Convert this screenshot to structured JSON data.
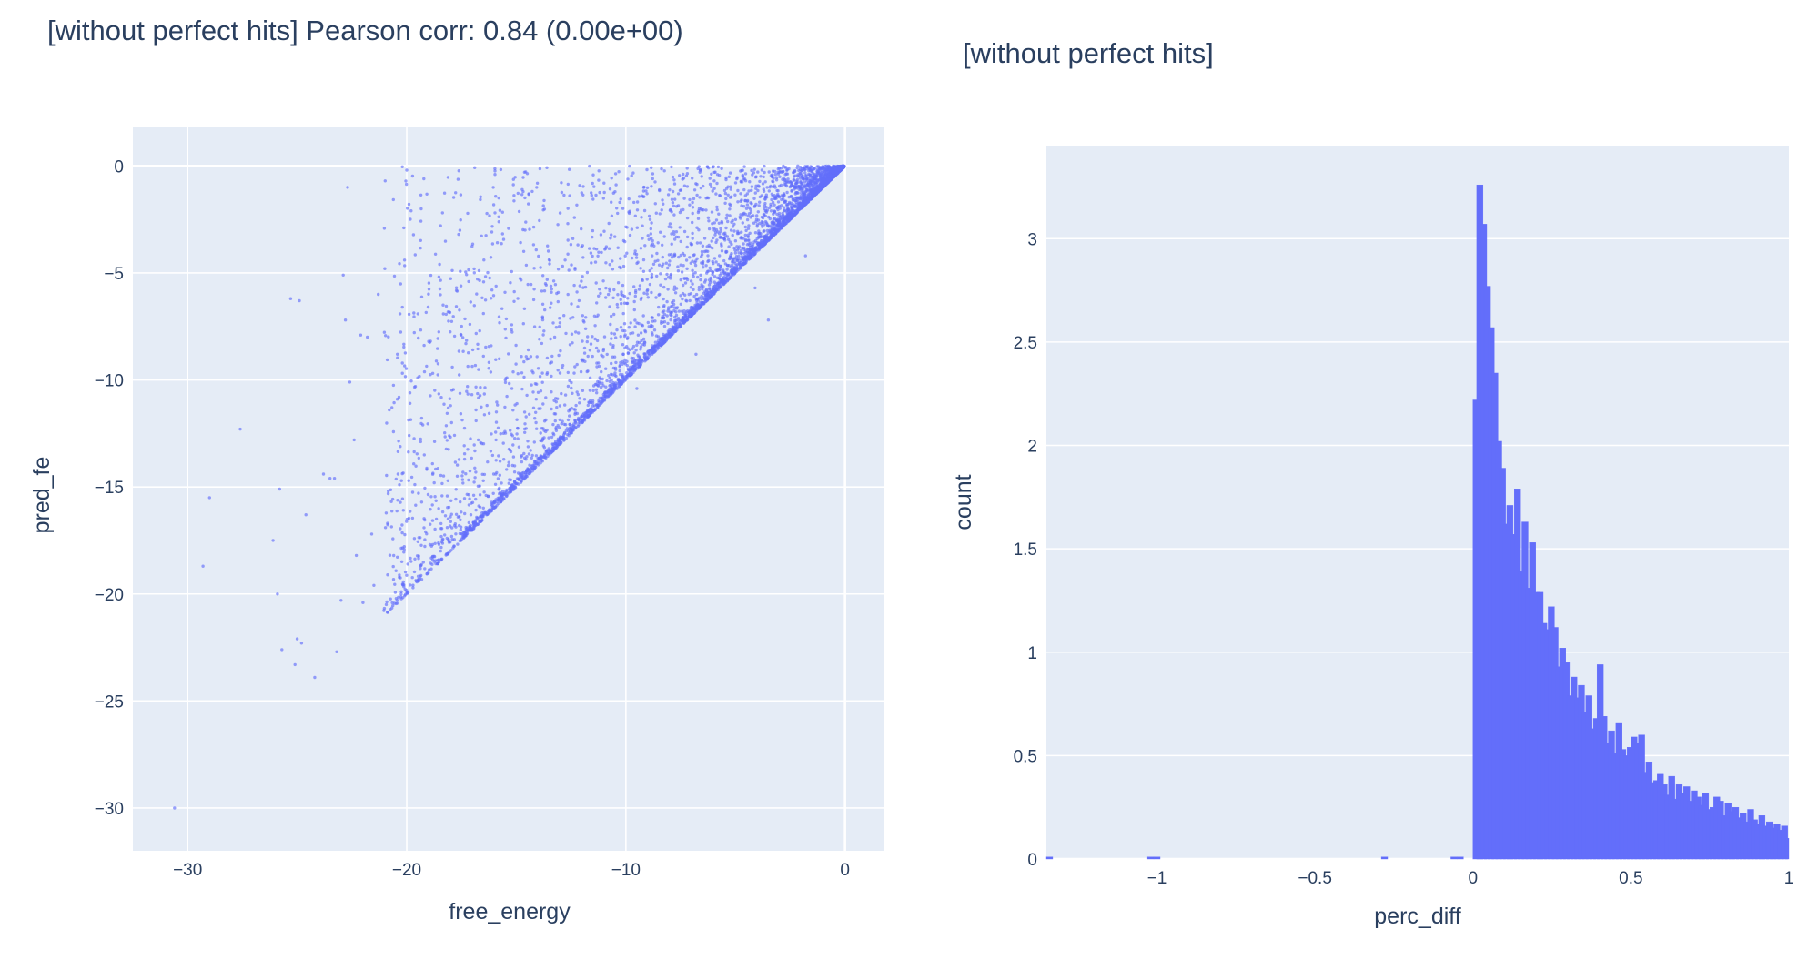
{
  "chart_data": [
    {
      "type": "scatter",
      "title": "[without perfect hits] Pearson corr: 0.84 (0.00e+00)",
      "xlabel": "free_energy",
      "ylabel": "pred_fe",
      "xlim": [
        -32.5,
        1.8
      ],
      "ylim": [
        -32,
        1.8
      ],
      "xticks": [
        -30,
        -20,
        -10,
        0
      ],
      "yticks": [
        0,
        -5,
        -10,
        -15,
        -20,
        -25,
        -30
      ],
      "xtick_labels": [
        "−30",
        "−20",
        "−10",
        "0"
      ],
      "ytick_labels": [
        "0",
        "−5",
        "−10",
        "−15",
        "−20",
        "−25",
        "−30"
      ],
      "color": "#636efa",
      "grid": true,
      "note_points": "dense triangular cloud with pred_fe >= free_energy; sample outliers listed",
      "points": [
        [
          -30.6,
          -30.0
        ],
        [
          -29.3,
          -18.7
        ],
        [
          -29.0,
          -15.5
        ],
        [
          -27.6,
          -12.3
        ],
        [
          -26.1,
          -17.5
        ],
        [
          -25.9,
          -20.0
        ],
        [
          -25.8,
          -15.1
        ],
        [
          -25.7,
          -22.6
        ],
        [
          -25.3,
          -6.2
        ],
        [
          -25.1,
          -23.3
        ],
        [
          -25.0,
          -22.1
        ],
        [
          -24.9,
          -6.3
        ],
        [
          -24.8,
          -22.3
        ],
        [
          -24.6,
          -16.3
        ],
        [
          -24.2,
          -23.9
        ],
        [
          -23.8,
          -14.4
        ],
        [
          -23.5,
          -14.6
        ],
        [
          -23.3,
          -14.6
        ],
        [
          -23.2,
          -22.7
        ],
        [
          -23.0,
          -20.3
        ],
        [
          -22.9,
          -5.1
        ],
        [
          -22.8,
          -7.2
        ],
        [
          -22.7,
          -1.0
        ],
        [
          -22.6,
          -10.1
        ],
        [
          -22.4,
          -12.8
        ],
        [
          -22.3,
          -18.2
        ],
        [
          -22.1,
          -7.9
        ],
        [
          -22.0,
          -20.4
        ],
        [
          -21.8,
          -8.0
        ],
        [
          -21.6,
          -17.2
        ],
        [
          -21.5,
          -19.6
        ],
        [
          -21.3,
          -6.0
        ],
        [
          -21.0,
          -4.8
        ],
        [
          -20.8,
          -11.4
        ],
        [
          -20.4,
          -14.4
        ],
        [
          -20.2,
          -6.6
        ],
        [
          -20.1,
          -4.4
        ],
        [
          -20.0,
          -0.2
        ],
        [
          -19.8,
          -2.1
        ],
        [
          -19.5,
          -9.9
        ],
        [
          -19.2,
          -13.5
        ],
        [
          -18.5,
          -4.6
        ],
        [
          -18.0,
          -11.2
        ],
        [
          -17.3,
          -8.3
        ],
        [
          -16.5,
          -6.9
        ],
        [
          -15.8,
          -1.5
        ],
        [
          -15.2,
          -10.4
        ],
        [
          -14.6,
          -3.0
        ],
        [
          -13.8,
          -7.1
        ],
        [
          -13.0,
          -2.2
        ],
        [
          -12.1,
          -5.6
        ],
        [
          -11.0,
          -0.8
        ],
        [
          -10.2,
          -6.0
        ],
        [
          -9.5,
          -10.4
        ],
        [
          -8.8,
          -4.2
        ],
        [
          -7.6,
          -1.3
        ],
        [
          -6.8,
          -8.8
        ],
        [
          -5.5,
          -3.4
        ],
        [
          -4.1,
          -5.7
        ],
        [
          -3.5,
          -7.2
        ],
        [
          -2.3,
          -1.9
        ],
        [
          -1.8,
          -4.2
        ],
        [
          -0.9,
          -0.4
        ],
        [
          -0.2,
          -0.1
        ]
      ]
    },
    {
      "type": "bar",
      "subtype": "histogram",
      "title": "[without perfect hits]",
      "xlabel": "perc_diff",
      "ylabel": "count",
      "xlim": [
        -1.35,
        1.0
      ],
      "ylim": [
        0,
        3.45
      ],
      "xticks": [
        -1,
        -0.5,
        0,
        0.5,
        1
      ],
      "yticks": [
        0,
        0.5,
        1,
        1.5,
        2,
        2.5,
        3
      ],
      "xtick_labels": [
        "−1",
        "−0.5",
        "0",
        "0.5",
        "1"
      ],
      "ytick_labels": [
        "0",
        "0.5",
        "1",
        "1.5",
        "2",
        "2.5",
        "3"
      ],
      "color": "#636efa",
      "grid": true,
      "bin_width": 0.02,
      "bins_left": [
        {
          "x0": -1.35,
          "value": 0.01
        },
        {
          "x0": -1.03,
          "value": 0.01
        },
        {
          "x0": -1.01,
          "value": 0.01
        },
        {
          "x0": -0.29,
          "value": 0.01
        },
        {
          "x0": -0.07,
          "value": 0.01
        },
        {
          "x0": -0.05,
          "value": 0.01
        }
      ],
      "bins_from": 0.0,
      "values": [
        2.22,
        3.26,
        3.07,
        2.77,
        2.57,
        2.35,
        2.02,
        1.89,
        1.62,
        1.71,
        1.57,
        1.79,
        1.39,
        1.63,
        1.31,
        1.53,
        1.29,
        1.29,
        1.14,
        1.11,
        1.22,
        1.12,
        0.93,
        1.02,
        0.95,
        0.79,
        0.88,
        0.78,
        0.84,
        0.71,
        0.79,
        0.63,
        0.68,
        0.94,
        0.69,
        0.56,
        0.62,
        0.51,
        0.66,
        0.53,
        0.5,
        0.54,
        0.59,
        0.56,
        0.6,
        0.42,
        0.47,
        0.37,
        0.38,
        0.41,
        0.36,
        0.31,
        0.4,
        0.29,
        0.36,
        0.32,
        0.35,
        0.28,
        0.33,
        0.3,
        0.26,
        0.32,
        0.24,
        0.25,
        0.3,
        0.28,
        0.21,
        0.27,
        0.23,
        0.25,
        0.2,
        0.22,
        0.18,
        0.24,
        0.19,
        0.17,
        0.21,
        0.16,
        0.18,
        0.15,
        0.17,
        0.14,
        0.16,
        0.1
      ]
    }
  ]
}
